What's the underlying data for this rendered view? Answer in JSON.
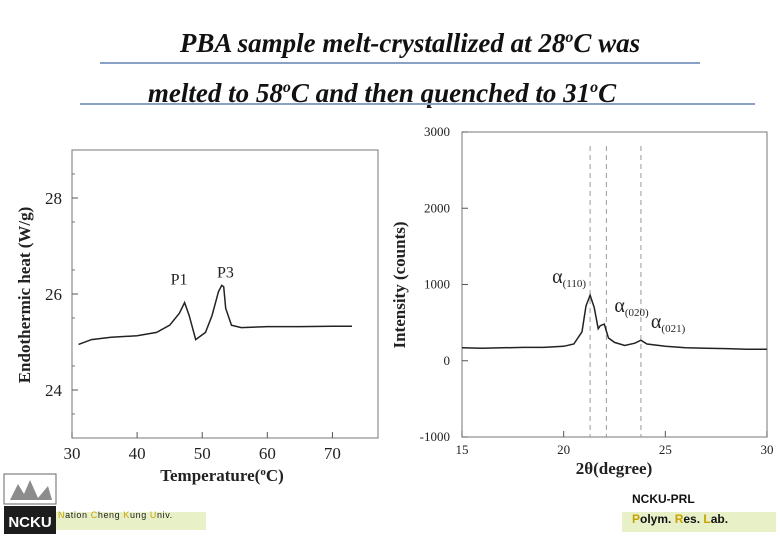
{
  "slide": {
    "title_line1_pre": "PBA sample melt-crystallized at 28",
    "title_line1_sup": "o",
    "title_line1_post": "C was",
    "title_line2_pre": "melted to 58",
    "title_line2_sup1": "o",
    "title_line2_mid": "C and then quenched to 31",
    "title_line2_sup2": "o",
    "title_line2_post": "C"
  },
  "dsc": {
    "ylabel": "Endothermic heat (W/g)",
    "xlabel_pre": "Temperature(",
    "xlabel_sup": "o",
    "xlabel_post": "C)",
    "peak_labels": [
      "P1",
      "P3"
    ]
  },
  "xrd": {
    "ylabel": "Intensity (counts)",
    "xlabel_symbol": "2θ",
    "xlabel_rest": "(degree)",
    "peaks": [
      {
        "alpha": "α",
        "index": "(110)"
      },
      {
        "alpha": "α",
        "index": "(020)"
      },
      {
        "alpha": "α",
        "index": "(021)"
      }
    ]
  },
  "footer": {
    "left_text_parts": [
      "N",
      "ation ",
      "C",
      "heng ",
      "K",
      "ung ",
      "U",
      "niv."
    ],
    "logo_text": "NCKU",
    "right_line1": "NCKU-PRL",
    "right_line2_parts": [
      "P",
      "olym. ",
      "R",
      "es. ",
      "L",
      "ab."
    ]
  },
  "chart_data": [
    {
      "type": "line",
      "title": "",
      "xlabel": "Temperature(oC)",
      "ylabel": "Endothermic heat (W/g)",
      "xlim": [
        30,
        77
      ],
      "ylim": [
        23,
        29
      ],
      "x_ticks": [
        30,
        40,
        50,
        60,
        70
      ],
      "y_ticks": [
        24,
        26,
        28
      ],
      "series": [
        {
          "x": [
            31,
            33,
            36,
            40,
            43,
            45,
            46.5,
            47.3,
            48,
            49,
            50.5,
            51.5,
            52.5,
            53,
            53.3,
            53.6,
            54.5,
            56,
            60,
            65,
            70,
            73
          ],
          "y": [
            24.95,
            25.05,
            25.1,
            25.13,
            25.2,
            25.35,
            25.6,
            25.82,
            25.55,
            25.05,
            25.2,
            25.55,
            26.05,
            26.18,
            26.15,
            25.7,
            25.35,
            25.3,
            25.32,
            25.32,
            25.33,
            25.33
          ]
        }
      ],
      "annotations": [
        {
          "text": "P1",
          "x": 47.3,
          "y": 25.82
        },
        {
          "text": "P3",
          "x": 53.2,
          "y": 26.18
        }
      ],
      "grid": false
    },
    {
      "type": "line",
      "title": "",
      "xlabel": "2θ(degree)",
      "ylabel": "Intensity (counts)",
      "xlim": [
        15,
        30
      ],
      "ylim": [
        -1000,
        3000
      ],
      "x_ticks": [
        15,
        20,
        25,
        30
      ],
      "y_ticks": [
        -1000,
        0,
        1000,
        2000,
        3000
      ],
      "series": [
        {
          "x": [
            15,
            16,
            17,
            18,
            19,
            20,
            20.5,
            20.9,
            21.1,
            21.3,
            21.5,
            21.7,
            21.8,
            22.0,
            22.2,
            22.5,
            23,
            23.5,
            23.8,
            24.1,
            25,
            26,
            27,
            28,
            29,
            30
          ],
          "y": [
            170,
            165,
            170,
            175,
            175,
            190,
            220,
            380,
            720,
            860,
            700,
            420,
            460,
            480,
            300,
            240,
            200,
            230,
            270,
            220,
            190,
            170,
            165,
            160,
            150,
            150
          ]
        }
      ],
      "reference_lines_x": [
        21.3,
        22.1,
        23.8
      ],
      "annotations": [
        {
          "text": "α(110)",
          "x": 21.3,
          "y": 860
        },
        {
          "text": "α(020)",
          "x": 22.1,
          "y": 480
        },
        {
          "text": "α(021)",
          "x": 23.8,
          "y": 270
        }
      ],
      "grid": false
    }
  ]
}
